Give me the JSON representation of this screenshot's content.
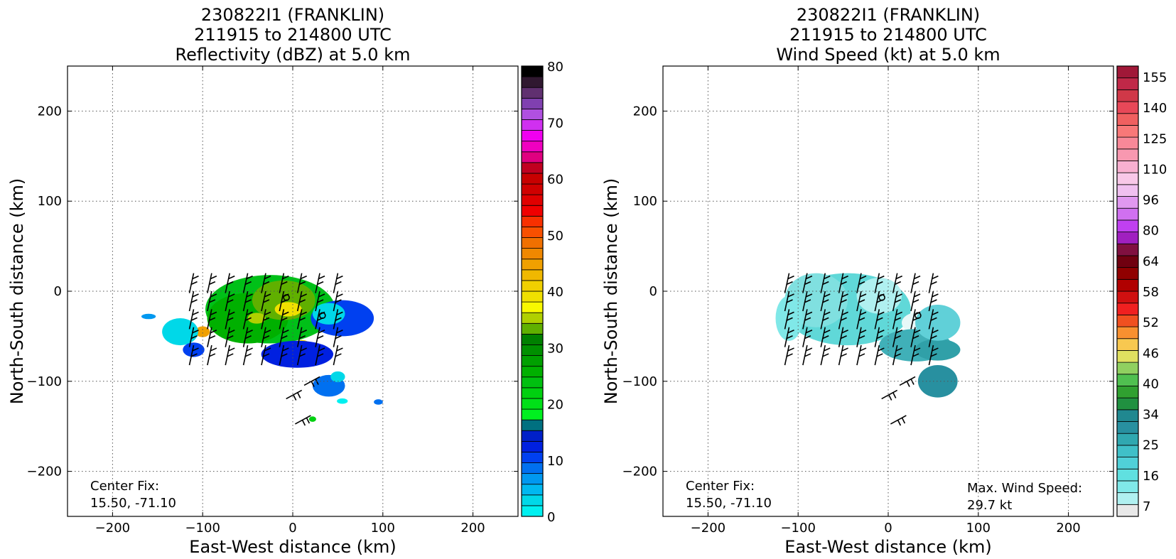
{
  "chart_data": [
    {
      "type": "heatmap",
      "title": [
        "230822I1 (FRANKLIN)",
        "211915 to 214800 UTC",
        "Reflectivity (dBZ) at 5.0 km"
      ],
      "xlabel": "East-West distance (km)",
      "ylabel": "North-South distance (km)",
      "xlim": [
        -250,
        250
      ],
      "ylim": [
        -250,
        250
      ],
      "xticks": [
        -200,
        -100,
        0,
        100,
        200
      ],
      "yticks": [
        -200,
        -100,
        0,
        100,
        200
      ],
      "grid": true,
      "center_fix": [
        "Center Fix:",
        "15.50, -71.10"
      ],
      "colorbar": {
        "min": 0,
        "max": 80,
        "tick_labels": [
          "80",
          "70",
          "60",
          "50",
          "40",
          "30",
          "20",
          "10",
          "0"
        ],
        "tick_values": [
          80,
          70,
          60,
          50,
          40,
          30,
          20,
          10,
          0
        ],
        "colors": [
          "#00f0f0",
          "#00d8e8",
          "#00b8f0",
          "#0098f0",
          "#0070f0",
          "#0040f0",
          "#0020e0",
          "#0020c8",
          "#007080",
          "#00f020",
          "#00e018",
          "#00d010",
          "#00c010",
          "#00b000",
          "#00a000",
          "#009000",
          "#008000",
          "#60b000",
          "#b0d000",
          "#f8f800",
          "#f0e000",
          "#f0d000",
          "#f0b800",
          "#f0a000",
          "#f08800",
          "#f07000",
          "#f85000",
          "#f83000",
          "#f00000",
          "#e00000",
          "#d00000",
          "#c80000",
          "#c00020",
          "#e00080",
          "#f000c0",
          "#f000f0",
          "#d030f0",
          "#b050e0",
          "#8040b0",
          "#603070",
          "#301830",
          "#000000"
        ]
      },
      "echo_blobs": [
        {
          "cx": -25,
          "cy": -20,
          "rx": 72,
          "ry": 38,
          "color": "#00c018"
        },
        {
          "cx": -50,
          "cy": -30,
          "rx": 45,
          "ry": 28,
          "color": "#00b000"
        },
        {
          "cx": -10,
          "cy": -10,
          "rx": 35,
          "ry": 22,
          "color": "#60b000"
        },
        {
          "cx": -5,
          "cy": -20,
          "rx": 15,
          "ry": 8,
          "color": "#f0e000"
        },
        {
          "cx": -40,
          "cy": -30,
          "rx": 10,
          "ry": 6,
          "color": "#b0d000"
        },
        {
          "cx": 10,
          "cy": -62,
          "rx": 10,
          "ry": 8,
          "color": "#f0d000"
        },
        {
          "cx": -100,
          "cy": -45,
          "rx": 8,
          "ry": 6,
          "color": "#f0a000"
        },
        {
          "cx": 55,
          "cy": -30,
          "rx": 35,
          "ry": 20,
          "color": "#0040f0"
        },
        {
          "cx": 40,
          "cy": -25,
          "rx": 18,
          "ry": 12,
          "color": "#00d8e8"
        },
        {
          "cx": 5,
          "cy": -70,
          "rx": 40,
          "ry": 15,
          "color": "#0020e0"
        },
        {
          "cx": -125,
          "cy": -45,
          "rx": 20,
          "ry": 15,
          "color": "#00d8e8"
        },
        {
          "cx": -110,
          "cy": -65,
          "rx": 12,
          "ry": 8,
          "color": "#0040f0"
        },
        {
          "cx": -160,
          "cy": -28,
          "rx": 8,
          "ry": 3,
          "color": "#0098f0"
        },
        {
          "cx": 40,
          "cy": -105,
          "rx": 18,
          "ry": 12,
          "color": "#0070f0"
        },
        {
          "cx": 50,
          "cy": -95,
          "rx": 8,
          "ry": 6,
          "color": "#00d8e8"
        },
        {
          "cx": 95,
          "cy": -123,
          "rx": 5,
          "ry": 3,
          "color": "#0070f0"
        },
        {
          "cx": 55,
          "cy": -122,
          "rx": 6,
          "ry": 3,
          "color": "#00f0f0"
        },
        {
          "cx": 22,
          "cy": -142,
          "rx": 4,
          "ry": 3,
          "color": "#00d010"
        }
      ]
    },
    {
      "type": "heatmap",
      "title": [
        "230822I1 (FRANKLIN)",
        "211915 to 214800 UTC",
        "Wind Speed (kt) at 5.0 km"
      ],
      "xlabel": "East-West distance (km)",
      "ylabel": "North-South distance (km)",
      "xlim": [
        -250,
        250
      ],
      "ylim": [
        -250,
        250
      ],
      "xticks": [
        -200,
        -100,
        0,
        100,
        200
      ],
      "yticks": [
        -200,
        -100,
        0,
        100,
        200
      ],
      "grid": true,
      "center_fix": [
        "Center Fix:",
        "15.50, -71.10"
      ],
      "max_wind": [
        "Max. Wind Speed:",
        "29.7 kt"
      ],
      "colorbar": {
        "min": 4,
        "max": 160,
        "tick_labels": [
          "155",
          "140",
          "125",
          "110",
          "96",
          "80",
          "64",
          "58",
          "52",
          "46",
          "40",
          "34",
          "25",
          "16",
          "7"
        ],
        "colors": [
          "#e8e8e8",
          "#b0f0f0",
          "#80e8e8",
          "#60e0e0",
          "#50d0d8",
          "#40c0c8",
          "#30a8b0",
          "#2890a0",
          "#208890",
          "#209040",
          "#30a030",
          "#50c050",
          "#90d060",
          "#e0e060",
          "#f8c850",
          "#f89030",
          "#f05020",
          "#f02020",
          "#d01010",
          "#b00000",
          "#900000",
          "#700010",
          "#801040",
          "#a020c0",
          "#c040f0",
          "#d070f0",
          "#e098f0",
          "#f0c0f0",
          "#f8c8e8",
          "#f8b0d0",
          "#f898b0",
          "#f88898",
          "#f87878",
          "#f06060",
          "#e84858",
          "#d03848",
          "#c02848",
          "#a01838"
        ]
      },
      "wind_blobs": [
        {
          "cx": -45,
          "cy": -20,
          "rx": 70,
          "ry": 40,
          "color": "#60d8d8"
        },
        {
          "cx": -80,
          "cy": -10,
          "rx": 35,
          "ry": 30,
          "color": "#80e0e0"
        },
        {
          "cx": -10,
          "cy": -5,
          "rx": 25,
          "ry": 20,
          "color": "#b0f0f0"
        },
        {
          "cx": 35,
          "cy": -35,
          "rx": 20,
          "ry": 12,
          "color": "#e8f8f8"
        },
        {
          "cx": 30,
          "cy": -60,
          "rx": 40,
          "ry": 18,
          "color": "#40b0b8"
        },
        {
          "cx": 55,
          "cy": -65,
          "rx": 25,
          "ry": 12,
          "color": "#30a0a8"
        },
        {
          "cx": 55,
          "cy": -35,
          "rx": 25,
          "ry": 20,
          "color": "#60d0d8"
        },
        {
          "cx": 55,
          "cy": -100,
          "rx": 22,
          "ry": 18,
          "color": "#2890a0"
        },
        {
          "cx": -110,
          "cy": -30,
          "rx": 15,
          "ry": 25,
          "color": "#80e8e8"
        }
      ]
    }
  ]
}
